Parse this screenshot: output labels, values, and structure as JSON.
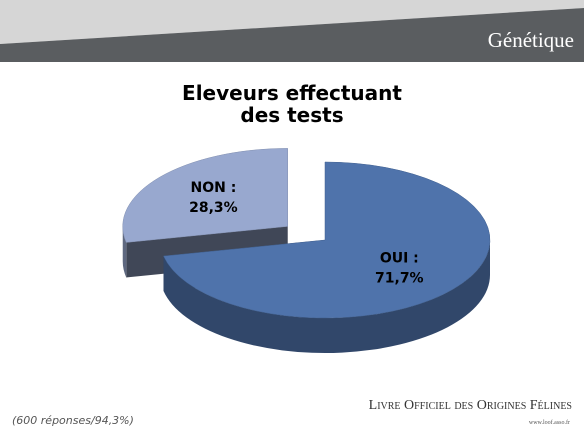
{
  "header": {
    "title": "Génétique"
  },
  "chart_data": {
    "type": "pie",
    "title": "Eleveurs effectuant des tests",
    "categories": [
      "OUI :",
      "NON :"
    ],
    "values": [
      71.7,
      28.3
    ],
    "value_labels": [
      "71,7%",
      "28,3%"
    ],
    "colors": [
      "#4f73ab",
      "#98a8cf"
    ],
    "exploded": [
      false,
      true
    ]
  },
  "footer": {
    "note": "(600 réponses/94,3%)",
    "logo": "Livre Officiel des Origines Félines",
    "url": "www.loof.asso.fr"
  }
}
